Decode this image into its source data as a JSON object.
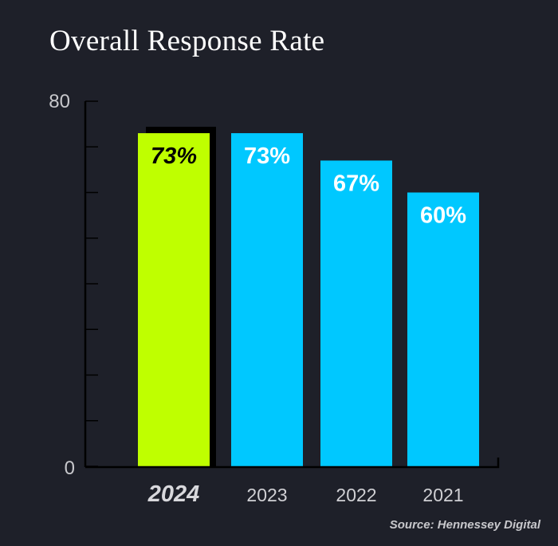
{
  "chart_data": {
    "type": "bar",
    "title": "Overall Response Rate",
    "categories": [
      "2024",
      "2023",
      "2022",
      "2021"
    ],
    "values": [
      73,
      73,
      67,
      60
    ],
    "data_labels": [
      "73%",
      "73%",
      "67%",
      "60%"
    ],
    "ylim": [
      0,
      80
    ],
    "y_tick_labels": [
      "0",
      "80"
    ],
    "y_minor_tick_step": 10,
    "grid": false,
    "legend": "none",
    "highlight_category": "2024",
    "colors": {
      "highlight": "#bfff00",
      "default": "#00c8ff",
      "background": "#1e2029",
      "axis": "#000000",
      "text": "#ffffff"
    },
    "source": "Source: Hennessey Digital"
  }
}
